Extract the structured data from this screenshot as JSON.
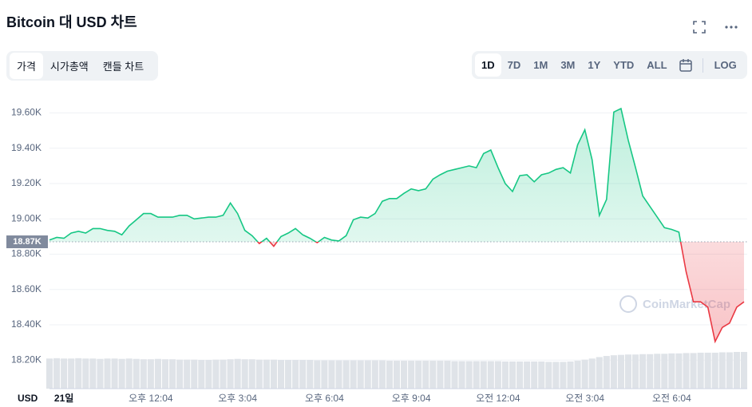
{
  "header": {
    "title": "Bitcoin 대 USD 차트",
    "tabs": [
      "가격",
      "시가총액",
      "캔들 차트"
    ],
    "ranges": [
      "1D",
      "7D",
      "1M",
      "3M",
      "1Y",
      "YTD",
      "ALL"
    ],
    "log": "LOG"
  },
  "chart_data": {
    "type": "line",
    "currency": "USD",
    "watermark": "CoinMarketCap",
    "up_color": "#16c784",
    "down_color": "#ea3943",
    "volume_color": "#dfe3e8",
    "reference": {
      "value": 18.87,
      "label": "18.87K"
    },
    "ylim": [
      18.07,
      19.72
    ],
    "yticks": [
      {
        "value": 18.2,
        "label": "18.20K"
      },
      {
        "value": 18.4,
        "label": "18.40K"
      },
      {
        "value": 18.6,
        "label": "18.60K"
      },
      {
        "value": 18.8,
        "label": "18.80K"
      },
      {
        "value": 19.0,
        "label": "19.00K"
      },
      {
        "value": 19.2,
        "label": "19.20K"
      },
      {
        "value": 19.4,
        "label": "19.40K"
      },
      {
        "value": 19.6,
        "label": "19.60K"
      }
    ],
    "grid": true,
    "categories": [
      null,
      null,
      "21일",
      null,
      null,
      null,
      null,
      null,
      null,
      null,
      null,
      null,
      null,
      null,
      "오후 12:04",
      null,
      null,
      null,
      null,
      null,
      null,
      null,
      null,
      null,
      null,
      null,
      "오후 3:04",
      null,
      null,
      null,
      null,
      null,
      null,
      null,
      null,
      null,
      null,
      null,
      "오후 6:04",
      null,
      null,
      null,
      null,
      null,
      null,
      null,
      null,
      null,
      null,
      null,
      "오후 9:04",
      null,
      null,
      null,
      null,
      null,
      null,
      null,
      null,
      null,
      null,
      null,
      "오전 12:04",
      null,
      null,
      null,
      null,
      null,
      null,
      null,
      null,
      null,
      null,
      null,
      "오전 3:04",
      null,
      null,
      null,
      null,
      null,
      null,
      null,
      null,
      null,
      null,
      null,
      "오전 6:04",
      null,
      null,
      null,
      null,
      null,
      null,
      null,
      null,
      null,
      null
    ],
    "values": [
      18.88,
      18.895,
      18.89,
      18.92,
      18.93,
      18.92,
      18.945,
      18.945,
      18.935,
      18.93,
      18.91,
      18.96,
      18.995,
      19.03,
      19.03,
      19.01,
      19.01,
      19.01,
      19.02,
      19.02,
      19.0,
      19.005,
      19.01,
      19.01,
      19.02,
      19.09,
      19.03,
      18.935,
      18.905,
      18.86,
      18.89,
      18.845,
      18.9,
      18.92,
      18.945,
      18.91,
      18.89,
      18.865,
      18.895,
      18.88,
      18.875,
      18.905,
      18.995,
      19.01,
      19.005,
      19.03,
      19.1,
      19.115,
      19.115,
      19.145,
      19.17,
      19.16,
      19.17,
      19.225,
      19.25,
      19.27,
      19.28,
      19.29,
      19.3,
      19.29,
      19.37,
      19.39,
      19.29,
      19.2,
      19.155,
      19.245,
      19.25,
      19.21,
      19.25,
      19.26,
      19.28,
      19.29,
      19.26,
      19.42,
      19.505,
      19.335,
      19.02,
      19.11,
      19.605,
      19.625,
      19.445,
      19.29,
      19.13,
      19.07,
      19.01,
      18.95,
      18.94,
      18.925,
      18.7,
      18.53,
      18.53,
      18.5,
      18.305,
      18.385,
      18.41,
      18.5,
      18.53
    ],
    "volume": [
      8.2,
      8.3,
      8.2,
      8.2,
      8.3,
      8.2,
      8.2,
      8.1,
      8.2,
      8.2,
      8.1,
      8.2,
      8.1,
      8.0,
      8.0,
      8.1,
      8.0,
      8.0,
      7.9,
      7.9,
      7.9,
      7.8,
      7.8,
      7.9,
      7.9,
      8.0,
      8.1,
      8.0,
      8.0,
      7.9,
      7.9,
      7.9,
      7.8,
      7.8,
      7.8,
      7.8,
      7.8,
      7.7,
      7.7,
      7.7,
      7.7,
      7.7,
      7.7,
      7.7,
      7.7,
      7.7,
      7.7,
      7.6,
      7.6,
      7.6,
      7.6,
      7.6,
      7.6,
      7.6,
      7.6,
      7.6,
      7.5,
      7.5,
      7.5,
      7.5,
      7.5,
      7.5,
      7.5,
      7.4,
      7.4,
      7.4,
      7.4,
      7.4,
      7.4,
      7.3,
      7.3,
      7.3,
      7.4,
      7.6,
      7.9,
      8.2,
      8.6,
      8.9,
      9.1,
      9.2,
      9.3,
      9.3,
      9.4,
      9.4,
      9.5,
      9.5,
      9.6,
      9.6,
      9.7,
      9.7,
      9.8,
      9.8,
      9.8,
      9.9,
      9.9,
      10,
      10
    ]
  }
}
